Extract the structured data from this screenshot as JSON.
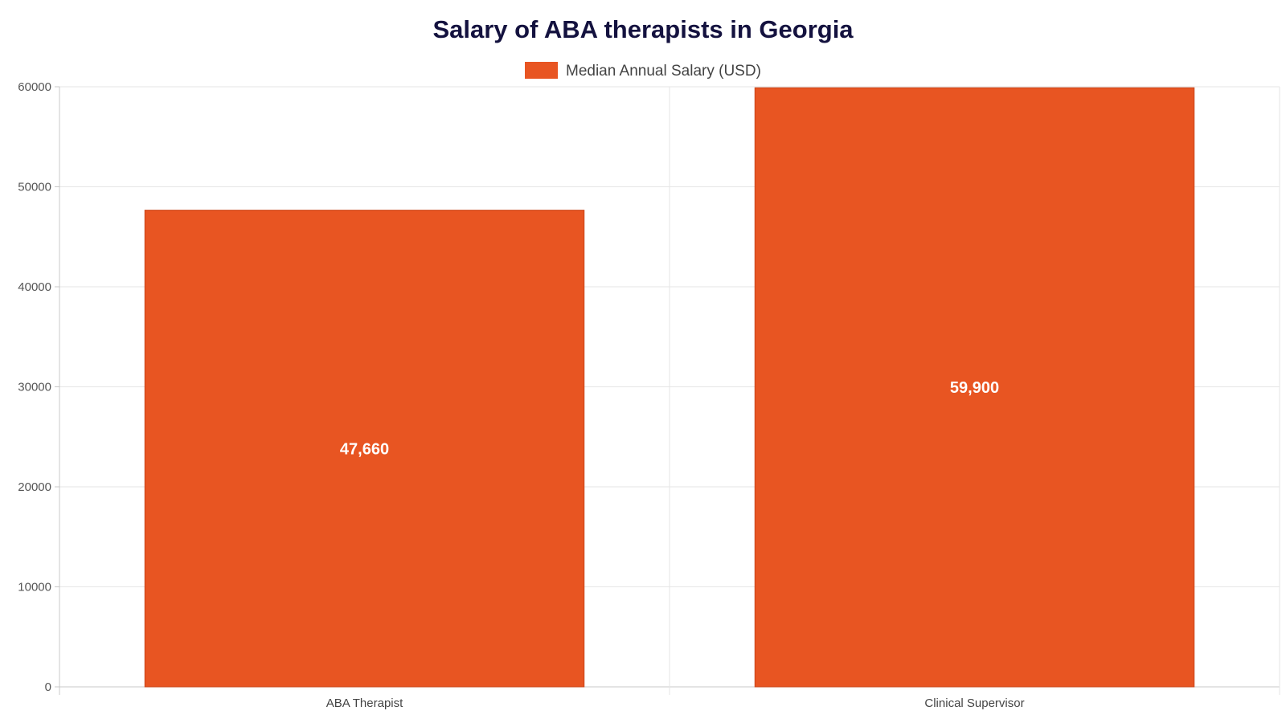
{
  "chart_data": {
    "type": "bar",
    "title": "Salary of ABA therapists in Georgia",
    "categories": [
      "ABA Therapist",
      "Clinical Supervisor"
    ],
    "series": [
      {
        "name": "Median Annual Salary (USD)",
        "values": [
          47660,
          59900
        ],
        "color": "#e85522"
      }
    ],
    "data_labels": [
      "47,660",
      "59,900"
    ],
    "y_ticks": [
      "0",
      "10000",
      "20000",
      "30000",
      "40000",
      "50000",
      "60000"
    ],
    "ylim": [
      0,
      60000
    ],
    "grid": true,
    "legend_position": "top-center"
  }
}
